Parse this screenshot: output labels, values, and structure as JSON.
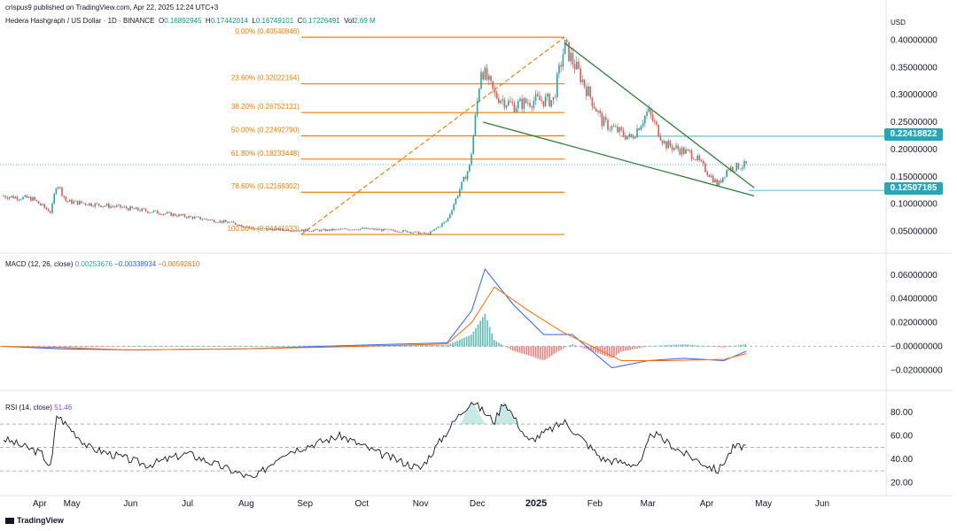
{
  "header": {
    "publish_line": "crispus9 published on TradingView.com, Apr 22, 2025 12:24 UTC+3"
  },
  "symbol_bar": {
    "title": "Hedera Hashgraph / US Dollar · 1D · BINANCE",
    "O": "0.16892945",
    "H": "0.17442014",
    "L": "0.16749101",
    "C": "0.17226491",
    "Vol": "2.69 M"
  },
  "macd_bar": {
    "label": "MACD (12, 26, close)",
    "v1": "0.00253676",
    "v2": "−0.00338934",
    "v3": "−0.00592610"
  },
  "rsi_bar": {
    "label": "RSI (14, close)",
    "v1": "51.46"
  },
  "currency": "USD",
  "price_tags": {
    "upper": "0.22418822",
    "lower": "0.12507185"
  },
  "brand": "TradingView",
  "colors": {
    "up": "#26a69a",
    "down": "#ef5350",
    "fib": "#f57c00",
    "wedge": "#2e7d32",
    "macd": "#2962ff",
    "signal": "#ff6d00",
    "tag": "#26a6b8"
  },
  "chart_data": [
    {
      "type": "candlestick",
      "x_ticks": [
        "Apr",
        "May",
        "Jun",
        "Jul",
        "Aug",
        "Sep",
        "Oct",
        "Nov",
        "Dec",
        "2025",
        "Feb",
        "Mar",
        "Apr",
        "May",
        "Jun"
      ],
      "y_ticks": [
        "0.40000000",
        "0.35000000",
        "0.30000000",
        "0.25000000",
        "0.20000000",
        "0.15000000",
        "0.10000000",
        "0.05000000"
      ],
      "ylim": [
        0.02,
        0.425
      ],
      "fibonacci": [
        {
          "label": "0.00% (0.40540846)",
          "value": 0.40540846
        },
        {
          "label": "23.60% (0.32022164)",
          "value": 0.32022164
        },
        {
          "label": "38.20% (0.26752131)",
          "value": 0.26752131
        },
        {
          "label": "50.00% (0.22492790)",
          "value": 0.2249279
        },
        {
          "label": "61.80% (0.18233448)",
          "value": 0.18233448
        },
        {
          "label": "78.60% (0.12169302)",
          "value": 0.12169302
        },
        {
          "label": "100.00% (0.04441533)",
          "value": 0.04441533
        }
      ],
      "path": [
        {
          "date": "2024-03-25",
          "v": 0.115
        },
        {
          "date": "2024-04-10",
          "v": 0.11
        },
        {
          "date": "2024-04-20",
          "v": 0.085
        },
        {
          "date": "2024-04-23",
          "v": 0.14
        },
        {
          "date": "2024-04-28",
          "v": 0.105
        },
        {
          "date": "2024-05-25",
          "v": 0.095
        },
        {
          "date": "2024-06-25",
          "v": 0.08
        },
        {
          "date": "2024-07-25",
          "v": 0.065
        },
        {
          "date": "2024-08-05",
          "v": 0.055
        },
        {
          "date": "2024-08-30",
          "v": 0.052
        },
        {
          "date": "2024-09-10",
          "v": 0.052
        },
        {
          "date": "2024-10-01",
          "v": 0.055
        },
        {
          "date": "2024-10-25",
          "v": 0.05
        },
        {
          "date": "2024-11-05",
          "v": 0.045
        },
        {
          "date": "2024-11-15",
          "v": 0.07
        },
        {
          "date": "2024-11-22",
          "v": 0.13
        },
        {
          "date": "2024-11-27",
          "v": 0.17
        },
        {
          "date": "2024-12-03",
          "v": 0.35
        },
        {
          "date": "2024-12-10",
          "v": 0.3
        },
        {
          "date": "2024-12-20",
          "v": 0.28
        },
        {
          "date": "2024-12-31",
          "v": 0.29
        },
        {
          "date": "2025-01-10",
          "v": 0.29
        },
        {
          "date": "2025-01-16",
          "v": 0.39
        },
        {
          "date": "2025-01-25",
          "v": 0.33
        },
        {
          "date": "2025-02-05",
          "v": 0.25
        },
        {
          "date": "2025-02-20",
          "v": 0.22
        },
        {
          "date": "2025-03-01",
          "v": 0.27
        },
        {
          "date": "2025-03-10",
          "v": 0.21
        },
        {
          "date": "2025-03-25",
          "v": 0.19
        },
        {
          "date": "2025-04-07",
          "v": 0.135
        },
        {
          "date": "2025-04-12",
          "v": 0.165
        },
        {
          "date": "2025-04-22",
          "v": 0.172
        }
      ]
    },
    {
      "type": "line",
      "name": "MACD (12, 26, close)",
      "y_ticks": [
        "0.06000000",
        "0.04000000",
        "0.02000000",
        "−0.00000000",
        "−0.02000000"
      ],
      "ylim": [
        -0.025,
        0.068
      ],
      "series": [
        {
          "name": "macd",
          "points": [
            {
              "date": "2024-03-25",
              "v": 0.0
            },
            {
              "date": "2024-04-25",
              "v": -0.002
            },
            {
              "date": "2024-06-01",
              "v": -0.003
            },
            {
              "date": "2024-08-01",
              "v": -0.002
            },
            {
              "date": "2024-10-01",
              "v": 0.001
            },
            {
              "date": "2024-11-15",
              "v": 0.003
            },
            {
              "date": "2024-11-28",
              "v": 0.03
            },
            {
              "date": "2024-12-05",
              "v": 0.065
            },
            {
              "date": "2024-12-20",
              "v": 0.035
            },
            {
              "date": "2025-01-05",
              "v": 0.01
            },
            {
              "date": "2025-01-20",
              "v": 0.01
            },
            {
              "date": "2025-02-10",
              "v": -0.018
            },
            {
              "date": "2025-03-01",
              "v": -0.012
            },
            {
              "date": "2025-03-20",
              "v": -0.01
            },
            {
              "date": "2025-04-10",
              "v": -0.012
            },
            {
              "date": "2025-04-22",
              "v": -0.004
            }
          ]
        },
        {
          "name": "signal",
          "points": [
            {
              "date": "2024-03-25",
              "v": 0.0
            },
            {
              "date": "2024-04-25",
              "v": -0.001
            },
            {
              "date": "2024-06-01",
              "v": -0.003
            },
            {
              "date": "2024-08-01",
              "v": -0.002
            },
            {
              "date": "2024-10-01",
              "v": 0.0
            },
            {
              "date": "2024-11-15",
              "v": 0.002
            },
            {
              "date": "2024-11-28",
              "v": 0.02
            },
            {
              "date": "2024-12-10",
              "v": 0.05
            },
            {
              "date": "2024-12-28",
              "v": 0.03
            },
            {
              "date": "2025-01-15",
              "v": 0.012
            },
            {
              "date": "2025-02-15",
              "v": -0.012
            },
            {
              "date": "2025-03-10",
              "v": -0.012
            },
            {
              "date": "2025-04-10",
              "v": -0.011
            },
            {
              "date": "2025-04-22",
              "v": -0.006
            }
          ]
        }
      ]
    },
    {
      "type": "line",
      "name": "RSI (14, close)",
      "y_ticks": [
        "80.00",
        "60.00",
        "40.00",
        "20.00"
      ],
      "ylim": [
        15,
        92
      ],
      "bands": [
        70,
        50,
        30
      ],
      "series": [
        {
          "name": "rsi",
          "points": [
            {
              "date": "2024-03-25",
              "v": 58
            },
            {
              "date": "2024-04-15",
              "v": 45
            },
            {
              "date": "2024-04-20",
              "v": 32
            },
            {
              "date": "2024-04-23",
              "v": 78
            },
            {
              "date": "2024-05-10",
              "v": 50
            },
            {
              "date": "2024-06-10",
              "v": 35
            },
            {
              "date": "2024-07-01",
              "v": 45
            },
            {
              "date": "2024-08-05",
              "v": 23
            },
            {
              "date": "2024-08-20",
              "v": 45
            },
            {
              "date": "2024-09-20",
              "v": 60
            },
            {
              "date": "2024-10-10",
              "v": 45
            },
            {
              "date": "2024-11-01",
              "v": 32
            },
            {
              "date": "2024-11-20",
              "v": 75
            },
            {
              "date": "2024-11-28",
              "v": 90
            },
            {
              "date": "2024-12-10",
              "v": 72
            },
            {
              "date": "2024-12-15",
              "v": 90
            },
            {
              "date": "2024-12-28",
              "v": 55
            },
            {
              "date": "2025-01-16",
              "v": 72
            },
            {
              "date": "2025-02-05",
              "v": 40
            },
            {
              "date": "2025-02-25",
              "v": 35
            },
            {
              "date": "2025-03-03",
              "v": 63
            },
            {
              "date": "2025-03-20",
              "v": 45
            },
            {
              "date": "2025-04-07",
              "v": 30
            },
            {
              "date": "2025-04-15",
              "v": 50
            },
            {
              "date": "2025-04-22",
              "v": 51.5
            }
          ]
        }
      ]
    }
  ]
}
